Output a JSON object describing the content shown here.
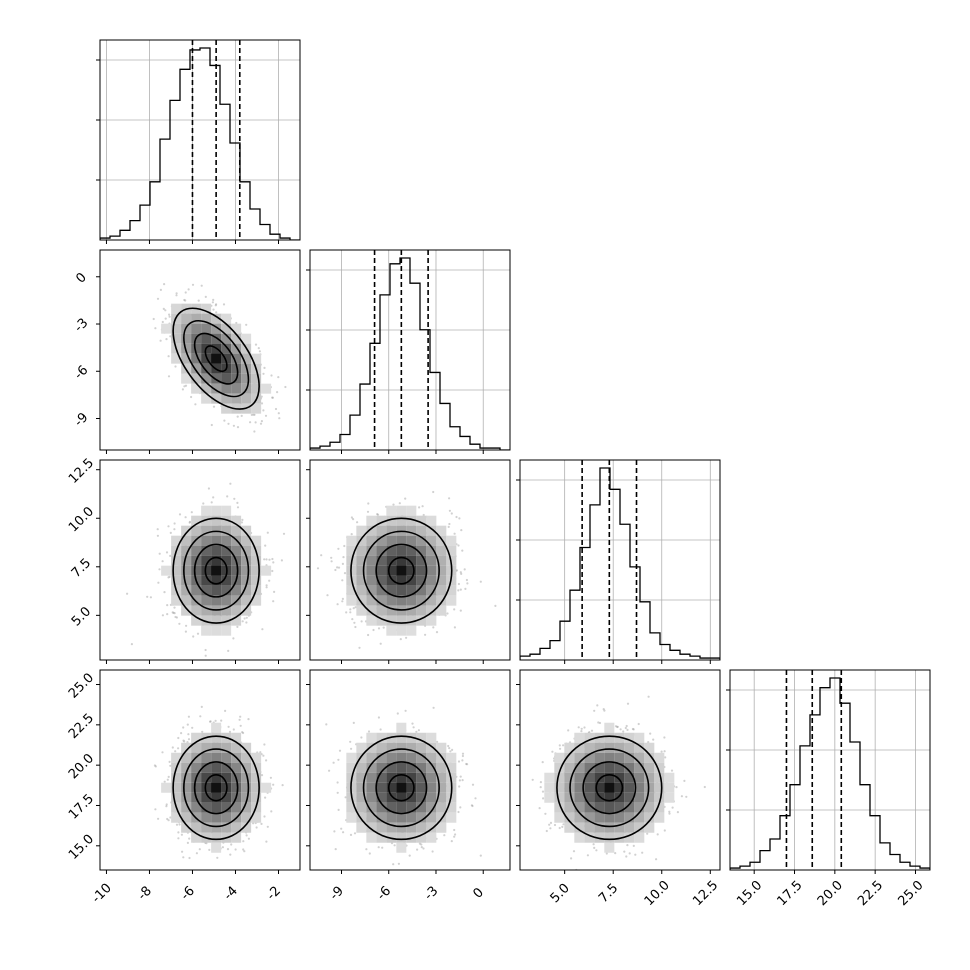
{
  "chart_data": {
    "type": "corner",
    "parameters": [
      {
        "range": [
          -10.3,
          -1.0
        ],
        "ticks": [
          "-10",
          "-8",
          "-6",
          "-4",
          "-2"
        ],
        "tick_values": [
          -10,
          -8,
          -6,
          -4,
          -2
        ],
        "quantiles": [
          -6.0,
          -4.9,
          -3.8
        ],
        "mean": -4.9,
        "sd": 1.0
      },
      {
        "range": [
          -11.0,
          1.7
        ],
        "ticks": [
          "-9",
          "-6",
          "-3",
          "0"
        ],
        "tick_values": [
          -9,
          -6,
          -3,
          0
        ],
        "quantiles": [
          -6.9,
          -5.2,
          -3.5
        ],
        "mean": -5.2,
        "sd": 1.6
      },
      {
        "range": [
          2.7,
          13.0
        ],
        "ticks": [
          "5.0",
          "7.5",
          "10.0",
          "12.5"
        ],
        "tick_values": [
          5.0,
          7.5,
          10.0,
          12.5
        ],
        "quantiles": [
          5.9,
          7.3,
          8.7
        ],
        "mean": 7.3,
        "sd": 1.35
      },
      {
        "range": [
          13.5,
          25.9
        ],
        "ticks": [
          "15.0",
          "17.5",
          "20.0",
          "22.5",
          "25.0"
        ],
        "tick_values": [
          15.0,
          17.5,
          20.0,
          22.5,
          25.0
        ],
        "quantiles": [
          17.0,
          18.6,
          20.4
        ],
        "mean": 18.6,
        "sd": 1.6
      }
    ],
    "correlations": [
      [
        1,
        -0.55,
        0,
        0
      ],
      [
        -0.55,
        1,
        0,
        0
      ],
      [
        0,
        0,
        1,
        0
      ],
      [
        0,
        0,
        0,
        1
      ]
    ],
    "histograms": [
      [
        1,
        2,
        5,
        10,
        18,
        30,
        52,
        72,
        88,
        98,
        99,
        90,
        70,
        50,
        30,
        16,
        8,
        3,
        1,
        0
      ],
      [
        1,
        2,
        4,
        8,
        18,
        34,
        55,
        80,
        96,
        99,
        86,
        62,
        40,
        24,
        12,
        7,
        3,
        1,
        1,
        0
      ],
      [
        2,
        3,
        6,
        10,
        20,
        36,
        58,
        80,
        99,
        88,
        70,
        48,
        30,
        14,
        8,
        5,
        3,
        2,
        1,
        1
      ],
      [
        1,
        2,
        4,
        10,
        16,
        28,
        44,
        64,
        80,
        94,
        99,
        86,
        66,
        44,
        28,
        14,
        8,
        4,
        2,
        1
      ]
    ],
    "xlabels": [
      "",
      "",
      "",
      ""
    ],
    "ylabels": [
      "",
      "",
      ""
    ],
    "grid": true,
    "legend": "none"
  }
}
